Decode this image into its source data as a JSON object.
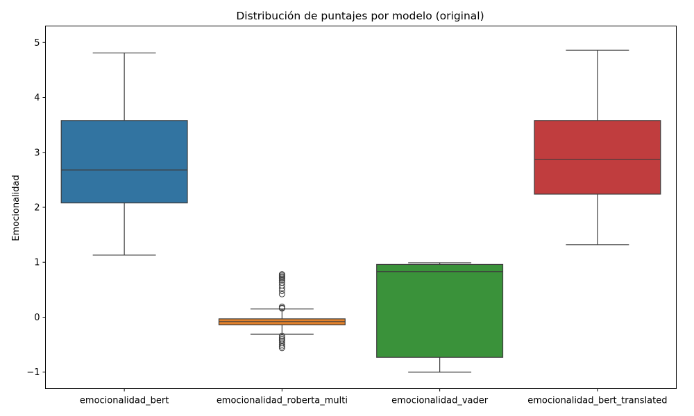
{
  "chart_data": {
    "type": "box",
    "title": "Distribución de puntajes por modelo (original)",
    "xlabel": "",
    "ylabel": "Emocionalidad",
    "ylim": [
      -1.3,
      5.3
    ],
    "yticks": [
      "5",
      "4",
      "3",
      "2",
      "1",
      "0",
      "−1"
    ],
    "ytick_values": [
      5,
      4,
      3,
      2,
      1,
      0,
      -1
    ],
    "grid": false,
    "categories": [
      "emocionalidad_bert",
      "emocionalidad_roberta_multi",
      "emocionalidad_vader",
      "emocionalidad_bert_translated"
    ],
    "boxes": [
      {
        "category": "emocionalidad_bert",
        "color": "#3274a1",
        "whisker_low": 1.13,
        "q1": 2.08,
        "median": 2.68,
        "q3": 3.58,
        "whisker_high": 4.81,
        "outliers": []
      },
      {
        "category": "emocionalidad_roberta_multi",
        "color": "#e1812c",
        "whisker_low": -0.31,
        "q1": -0.14,
        "median": -0.08,
        "q3": -0.03,
        "whisker_high": 0.15,
        "outliers": [
          0.78,
          0.76,
          0.74,
          0.72,
          0.7,
          0.67,
          0.63,
          0.58,
          0.53,
          0.48,
          0.42,
          0.19,
          0.17,
          0.16,
          -0.34,
          -0.37,
          -0.4,
          -0.43,
          -0.46,
          -0.5,
          -0.53,
          -0.56
        ]
      },
      {
        "category": "emocionalidad_vader",
        "color": "#3a923a",
        "whisker_low": -1.0,
        "q1": -0.73,
        "median": 0.83,
        "q3": 0.96,
        "whisker_high": 0.99,
        "outliers": []
      },
      {
        "category": "emocionalidad_bert_translated",
        "color": "#c03d3e",
        "whisker_low": 1.32,
        "q1": 2.24,
        "median": 2.87,
        "q3": 3.58,
        "whisker_high": 4.86,
        "outliers": []
      }
    ]
  }
}
